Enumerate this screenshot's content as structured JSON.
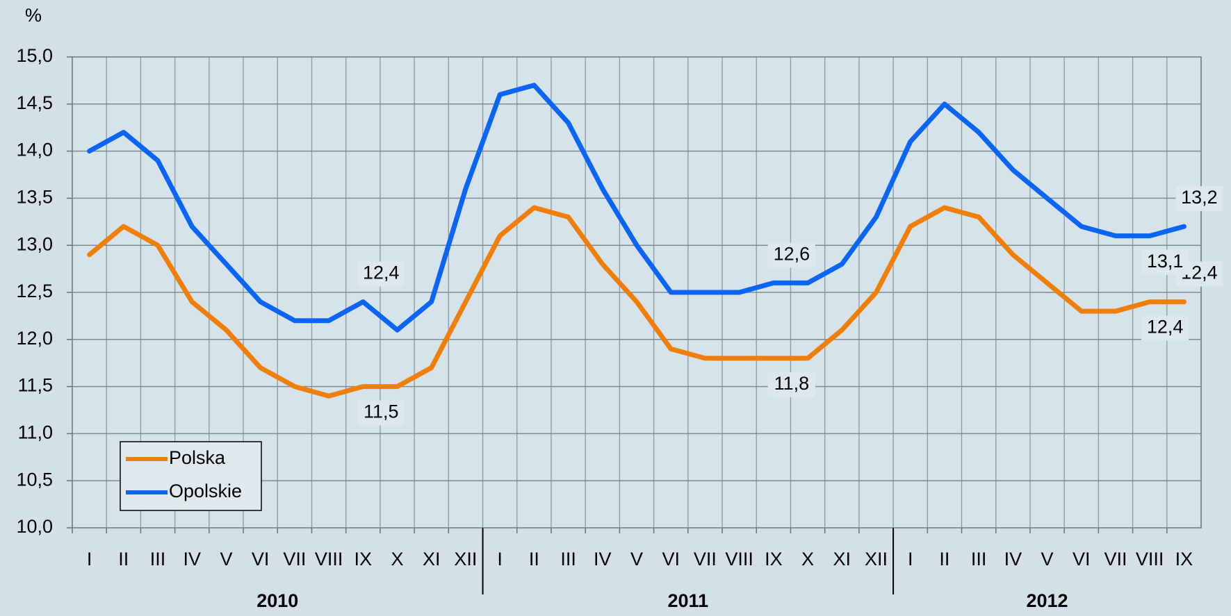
{
  "chart_data": {
    "type": "line",
    "y_label": "%",
    "categories": [
      "I",
      "II",
      "III",
      "IV",
      "V",
      "VI",
      "VII",
      "VIII",
      "IX",
      "X",
      "XI",
      "XII",
      "I",
      "II",
      "III",
      "IV",
      "V",
      "VI",
      "VII",
      "VIII",
      "IX",
      "X",
      "XI",
      "XII",
      "I",
      "II",
      "III",
      "IV",
      "V",
      "VI",
      "VII",
      "VIII",
      "IX"
    ],
    "groups": [
      {
        "name": "2010",
        "size": 12
      },
      {
        "name": "2011",
        "size": 12
      },
      {
        "name": "2012",
        "size": 9
      }
    ],
    "series": [
      {
        "name": "Polska",
        "color": "#f07f09",
        "values": [
          12.9,
          13.2,
          13.0,
          12.4,
          12.1,
          11.7,
          11.5,
          11.4,
          11.5,
          11.5,
          11.7,
          12.4,
          13.1,
          13.4,
          13.3,
          12.8,
          12.4,
          11.9,
          11.8,
          11.8,
          11.8,
          11.8,
          12.1,
          12.5,
          13.2,
          13.4,
          13.3,
          12.9,
          12.6,
          12.3,
          12.3,
          12.4,
          12.4
        ],
        "value_labels": [
          null,
          null,
          null,
          null,
          null,
          null,
          null,
          null,
          "11,5",
          null,
          null,
          null,
          null,
          null,
          null,
          null,
          null,
          null,
          null,
          null,
          "11,8",
          null,
          null,
          null,
          null,
          null,
          null,
          null,
          null,
          null,
          null,
          "12,4",
          "12,4"
        ]
      },
      {
        "name": "Opolskie",
        "color": "#0a64f5",
        "values": [
          14.0,
          14.2,
          13.9,
          13.2,
          12.8,
          12.4,
          12.2,
          12.2,
          12.4,
          12.1,
          12.4,
          13.6,
          14.6,
          14.7,
          14.3,
          13.6,
          13.0,
          12.5,
          12.5,
          12.5,
          12.6,
          12.6,
          12.8,
          13.3,
          14.1,
          14.5,
          14.2,
          13.8,
          13.5,
          13.2,
          13.1,
          13.1,
          13.2
        ],
        "value_labels": [
          null,
          null,
          null,
          null,
          null,
          null,
          null,
          null,
          "12,4",
          null,
          null,
          null,
          null,
          null,
          null,
          null,
          null,
          null,
          null,
          null,
          "12,6",
          null,
          null,
          null,
          null,
          null,
          null,
          null,
          null,
          null,
          null,
          "13,1",
          "13,2"
        ]
      }
    ],
    "ylim": [
      10,
      15
    ],
    "yticks": [
      {
        "value": 10,
        "label": "10,0"
      },
      {
        "value": 10.5,
        "label": "10,5"
      },
      {
        "value": 11,
        "label": "11,0"
      },
      {
        "value": 11.5,
        "label": "11,5"
      },
      {
        "value": 12,
        "label": "12,0"
      },
      {
        "value": 12.5,
        "label": "12,5"
      },
      {
        "value": 13,
        "label": "13,0"
      },
      {
        "value": 13.5,
        "label": "13,5"
      },
      {
        "value": 14,
        "label": "14,0"
      },
      {
        "value": 14.5,
        "label": "14,5"
      },
      {
        "value": 15,
        "label": "15,0"
      }
    ],
    "grid": true,
    "legend": "lower left"
  }
}
